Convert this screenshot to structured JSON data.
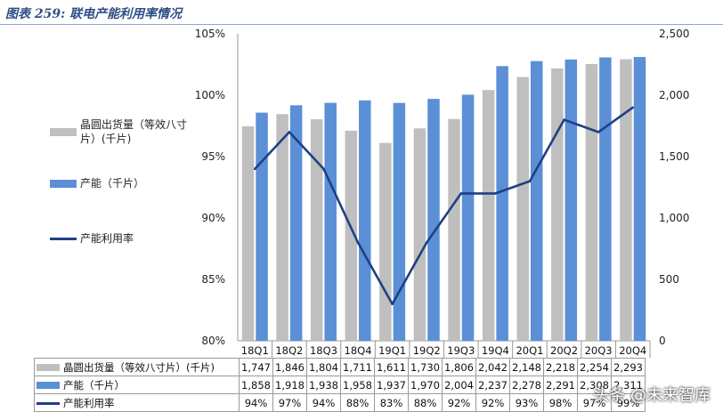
{
  "title": "图表 259:  联电产能利用率情况",
  "legend": {
    "shipments": "晶圆出货量（等效八寸片）(千片)",
    "capacity": "产能（千片）",
    "utilization": "产能利用率"
  },
  "table_labels": {
    "shipments": "晶圆出货量（等效八寸片）(千片)",
    "capacity": "产能（千片）",
    "utilization": "产能利用率"
  },
  "watermark": "头条 @未来智库",
  "colors": {
    "shipments": "#bfbfbf",
    "capacity": "#5b8fd6",
    "utilization": "#1f3f87"
  },
  "chart_data": {
    "type": "bar",
    "title": "",
    "categories": [
      "18Q1",
      "18Q2",
      "18Q3",
      "18Q4",
      "19Q1",
      "19Q2",
      "19Q3",
      "19Q4",
      "20Q1",
      "20Q2",
      "20Q3",
      "20Q4"
    ],
    "series": [
      {
        "name": "晶圆出货量（等效八寸片）(千片)",
        "type": "bar",
        "axis": "right",
        "values": [
          1747,
          1846,
          1804,
          1711,
          1611,
          1730,
          1806,
          2042,
          2148,
          2218,
          2254,
          2293
        ],
        "labels": [
          "1,747",
          "1,846",
          "1,804",
          "1,711",
          "1,611",
          "1,730",
          "1,806",
          "2,042",
          "2,148",
          "2,218",
          "2,254",
          "2,293"
        ]
      },
      {
        "name": "产能（千片）",
        "type": "bar",
        "axis": "right",
        "values": [
          1858,
          1918,
          1938,
          1958,
          1937,
          1970,
          2004,
          2237,
          2278,
          2291,
          2308,
          2311
        ],
        "labels": [
          "1,858",
          "1,918",
          "1,938",
          "1,958",
          "1,937",
          "1,970",
          "2,004",
          "2,237",
          "2,278",
          "2,291",
          "2,308",
          "2,311"
        ]
      },
      {
        "name": "产能利用率",
        "type": "line",
        "axis": "left",
        "values": [
          94,
          97,
          94,
          88,
          83,
          88,
          92,
          92,
          93,
          98,
          97,
          99
        ],
        "labels": [
          "94%",
          "97%",
          "94%",
          "88%",
          "83%",
          "88%",
          "92%",
          "92%",
          "93%",
          "98%",
          "97%",
          "99%"
        ]
      }
    ],
    "y_left": {
      "min": 80,
      "max": 105,
      "ticks": [
        "80%",
        "85%",
        "90%",
        "95%",
        "100%",
        "105%"
      ],
      "tick_values": [
        80,
        85,
        90,
        95,
        100,
        105
      ]
    },
    "y_right": {
      "min": 0,
      "max": 2500,
      "ticks": [
        "0",
        "500",
        "1,000",
        "1,500",
        "2,000",
        "2,500"
      ],
      "tick_values": [
        0,
        500,
        1000,
        1500,
        2000,
        2500
      ]
    },
    "grid": false,
    "legend_position": "left"
  }
}
